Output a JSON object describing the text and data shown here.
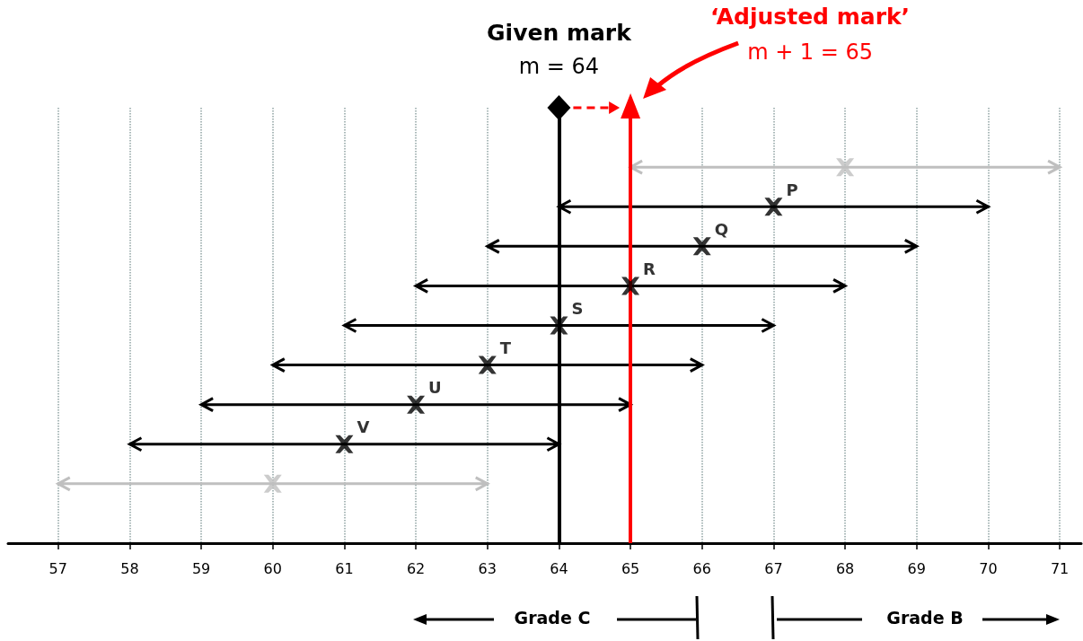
{
  "chart_data": {
    "type": "scatter",
    "orientation": "horizontal",
    "categories": [
      null,
      null,
      null,
      null,
      null,
      null,
      null,
      null,
      null,
      null,
      null
    ],
    "values": [
      null,
      68,
      67,
      66,
      65,
      64,
      63,
      62,
      61,
      60,
      null
    ],
    "value_labels": [
      null,
      null,
      "P",
      "Q",
      "R",
      "S",
      "T",
      "U",
      "V",
      null,
      null
    ],
    "errors": [
      null,
      3,
      3,
      3,
      3,
      3,
      3,
      3,
      3,
      3,
      null
    ],
    "colors": [
      "#000000",
      "#bfbfbf",
      "#000000",
      "#000000",
      "#000000",
      "#000000",
      "#000000",
      "#000000",
      "#000000",
      "#bfbfbf",
      "#000000"
    ],
    "marker": "cross",
    "xlim": [
      56.3,
      71.3
    ],
    "xticks": [
      57,
      58,
      59,
      60,
      61,
      62,
      63,
      64,
      65,
      66,
      67,
      68,
      69,
      70,
      71
    ],
    "grid": "x",
    "ref_lines": [
      {
        "axis": "x",
        "value": 64,
        "label": "Given mark",
        "color": "#000000"
      },
      {
        "axis": "x",
        "value": 65,
        "label": "‘Adjusted mark’",
        "color": "#ff0000"
      }
    ],
    "annotations": [
      "m = 64",
      "m + 1 = 65",
      "Grade C",
      "Grade B"
    ]
  }
}
